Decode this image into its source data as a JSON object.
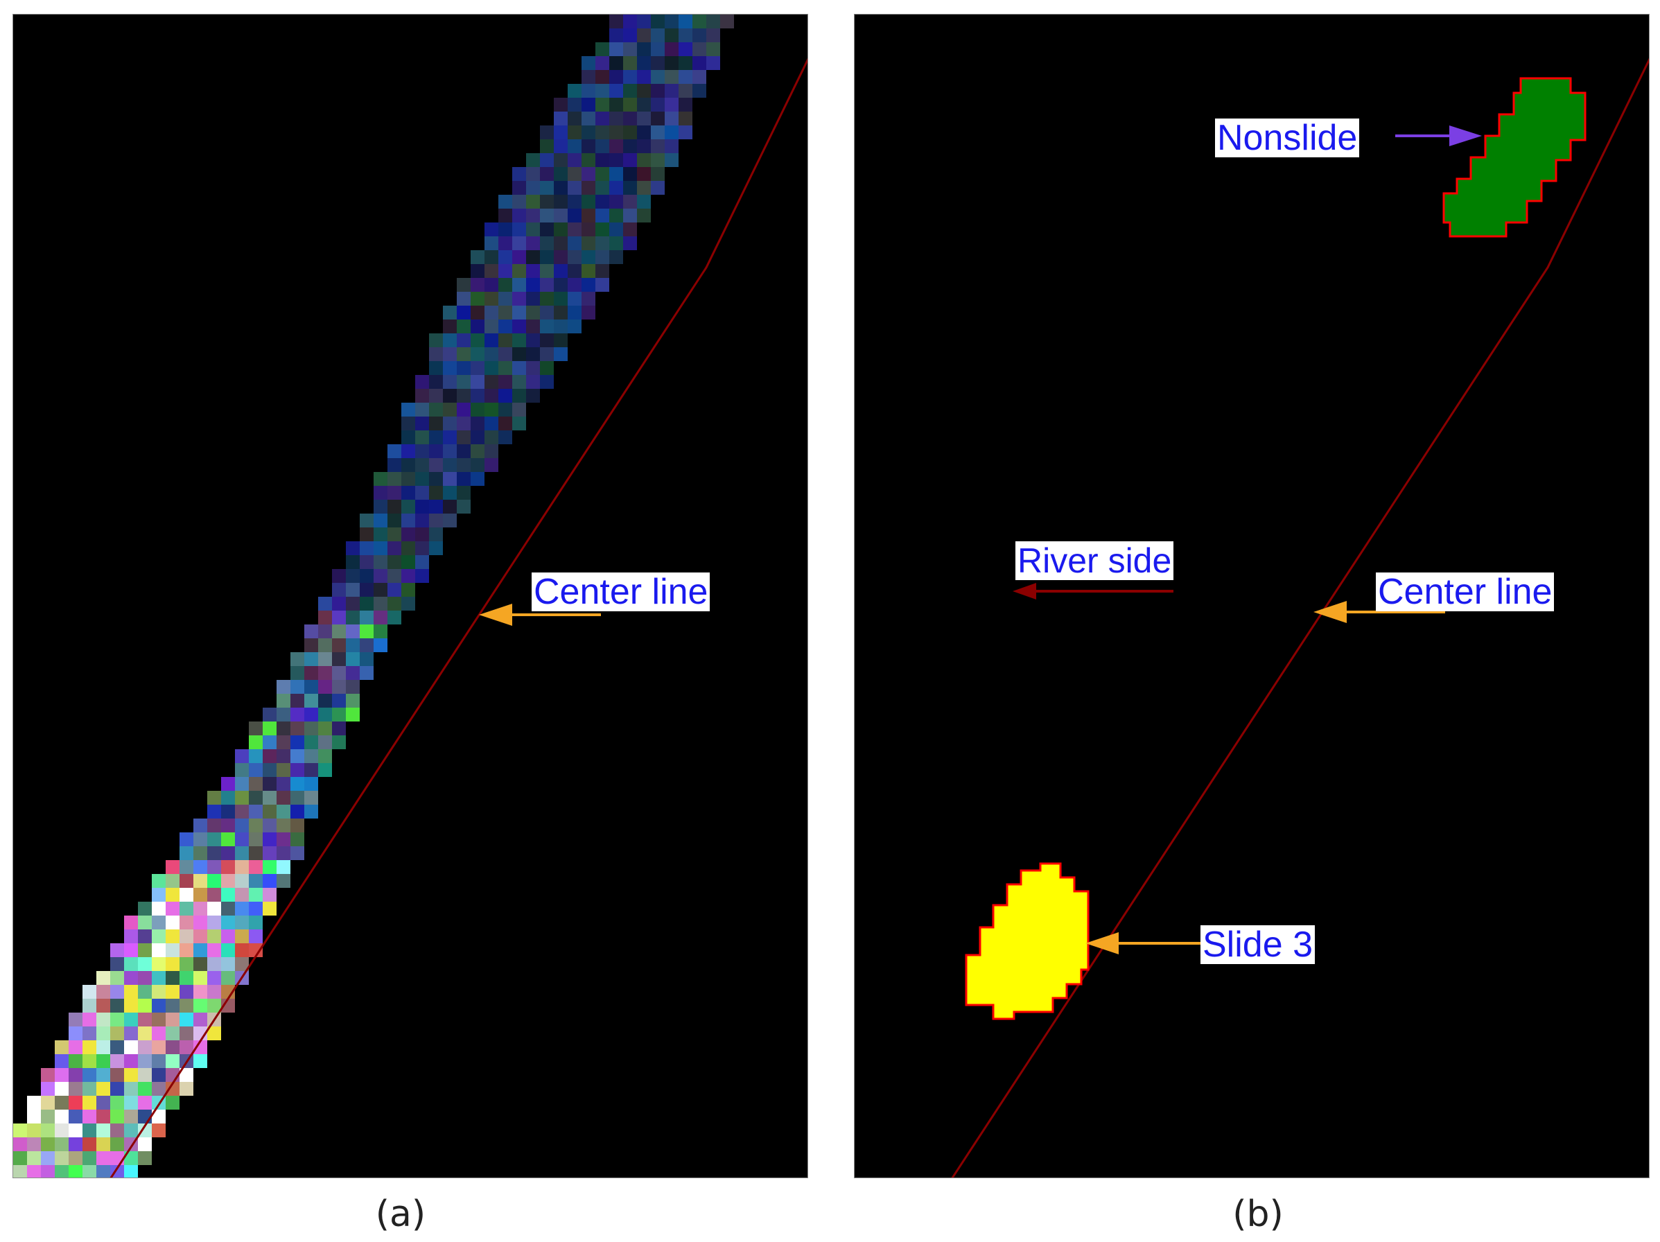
{
  "panels": [
    {
      "id": "a",
      "caption": "(a)",
      "labels": {
        "center_line": "Center line"
      }
    },
    {
      "id": "b",
      "caption": "(b)",
      "labels": {
        "nonslide": "Nonslide",
        "river_side": "River side",
        "center_line": "Center line",
        "slide": "Slide 3"
      }
    }
  ],
  "colors": {
    "background": "#000000",
    "center_line": "#8b0000",
    "label_text": "#1a1aee",
    "nonslide_fill": "#008000",
    "slide_fill": "#ffff00",
    "polygon_outline": "#ff0000",
    "pointer_orange": "#f5a623",
    "pointer_purple": "#7b3fe4",
    "river_arrow": "#8b0000"
  }
}
